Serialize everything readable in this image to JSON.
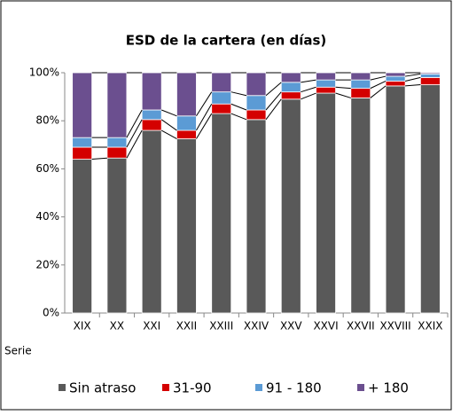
{
  "chart_data": {
    "type": "stacked_bar",
    "title": "ESD  de la cartera (en días)",
    "x_label": "Serie",
    "categories": [
      "XIX",
      "XX",
      "XXI",
      "XXII",
      "XXIII",
      "XXIV",
      "XXV",
      "XXVI",
      "XXVII",
      "XXVIII",
      "XXIX"
    ],
    "series": [
      {
        "name": "Sin atraso",
        "color": "#595959",
        "values": [
          64,
          64.5,
          76,
          72.5,
          83,
          80.5,
          89,
          91.5,
          89.5,
          94.5,
          95
        ]
      },
      {
        "name": "31-90",
        "color": "#d40000",
        "values": [
          5,
          4.5,
          4.5,
          3.5,
          4,
          4,
          3,
          2.5,
          4,
          2,
          3
        ]
      },
      {
        "name": "91 - 180",
        "color": "#5b9bd5",
        "values": [
          4,
          4,
          4,
          6,
          5,
          6,
          4,
          3,
          3.5,
          2,
          1.5
        ]
      },
      {
        "name": "+ 180",
        "color": "#6b4f8f",
        "values": [
          27,
          27,
          15.5,
          18,
          8,
          9.5,
          4,
          3,
          3,
          1.5,
          0.5
        ]
      }
    ],
    "ylim": [
      0,
      100
    ],
    "yticks": [
      {
        "value": 0,
        "label": "0%"
      },
      {
        "value": 20,
        "label": "20%"
      },
      {
        "value": 40,
        "label": "40%"
      },
      {
        "value": 60,
        "label": "60%"
      },
      {
        "value": 80,
        "label": "80%"
      },
      {
        "value": 100,
        "label": "100%"
      }
    ],
    "legend": "bottom",
    "series_lines": true
  }
}
